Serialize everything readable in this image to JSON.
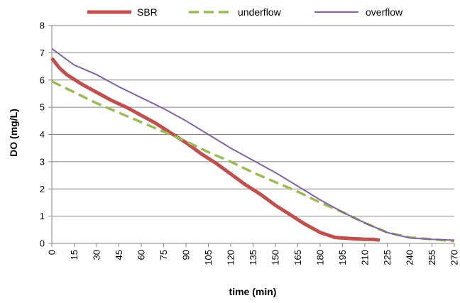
{
  "chart_data": {
    "type": "line",
    "title": "",
    "xlabel": "time (min)",
    "ylabel": "DO (mg/L)",
    "xlim": [
      0,
      270
    ],
    "ylim": [
      0,
      8
    ],
    "x_ticks": [
      0,
      15,
      30,
      45,
      60,
      75,
      90,
      105,
      120,
      135,
      150,
      165,
      180,
      195,
      210,
      225,
      240,
      255,
      270
    ],
    "y_ticks": [
      0,
      1,
      2,
      3,
      4,
      5,
      6,
      7,
      8
    ],
    "grid": "horizontal",
    "legend_position": "top",
    "series": [
      {
        "name": "SBR",
        "color": "#c0504d",
        "style": "solid-thick",
        "x": [
          0,
          5,
          10,
          20,
          30,
          40,
          50,
          60,
          70,
          80,
          90,
          100,
          110,
          120,
          130,
          140,
          150,
          160,
          170,
          180,
          190,
          200,
          210,
          215,
          220
        ],
        "y": [
          6.8,
          6.45,
          6.2,
          5.85,
          5.55,
          5.25,
          5.0,
          4.7,
          4.4,
          4.05,
          3.7,
          3.3,
          2.95,
          2.55,
          2.15,
          1.8,
          1.4,
          1.05,
          0.7,
          0.4,
          0.22,
          0.18,
          0.15,
          0.15,
          0.12
        ]
      },
      {
        "name": "underflow",
        "color": "#9bbb59",
        "style": "dashed",
        "x": [
          0,
          15,
          30,
          45,
          60,
          75,
          90,
          105,
          120,
          135,
          150,
          165,
          180,
          195,
          210,
          225,
          240,
          255,
          270
        ],
        "y": [
          5.95,
          5.55,
          5.15,
          4.8,
          4.45,
          4.1,
          3.75,
          3.35,
          3.0,
          2.6,
          2.25,
          1.9,
          1.5,
          1.15,
          0.75,
          0.4,
          0.22,
          0.15,
          0.08
        ]
      },
      {
        "name": "overflow",
        "color": "#8064a2",
        "style": "solid-thin",
        "x": [
          0,
          5,
          10,
          15,
          30,
          45,
          60,
          75,
          90,
          105,
          120,
          135,
          150,
          165,
          180,
          195,
          210,
          225,
          240,
          255,
          270
        ],
        "y": [
          7.15,
          6.95,
          6.75,
          6.55,
          6.2,
          5.75,
          5.35,
          4.95,
          4.5,
          4.0,
          3.5,
          3.05,
          2.6,
          2.1,
          1.6,
          1.15,
          0.75,
          0.4,
          0.2,
          0.15,
          0.12
        ]
      }
    ]
  }
}
